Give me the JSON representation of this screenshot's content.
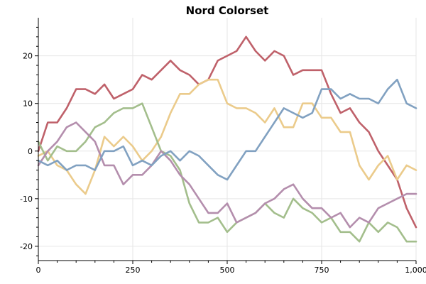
{
  "chart_data": {
    "type": "line",
    "title": "Nord Colorset",
    "xlabel": "",
    "ylabel": "",
    "xlim": [
      0,
      1000
    ],
    "ylim": [
      -23,
      28
    ],
    "x_ticks": [
      0,
      250,
      500,
      750,
      1000
    ],
    "x_tick_labels": [
      "0",
      "250",
      "500",
      "750",
      "1,000"
    ],
    "y_ticks": [
      -20,
      -10,
      0,
      10,
      20
    ],
    "y_tick_labels": [
      "-20",
      "-10",
      "0",
      "10",
      "20"
    ],
    "grid": true,
    "legend": "none",
    "x": [
      0,
      25,
      50,
      75,
      100,
      125,
      150,
      175,
      200,
      225,
      250,
      275,
      300,
      325,
      350,
      375,
      400,
      425,
      450,
      475,
      500,
      525,
      550,
      575,
      600,
      625,
      650,
      675,
      700,
      725,
      750,
      775,
      800,
      825,
      850,
      875,
      900,
      925,
      950,
      975,
      1000
    ],
    "series": [
      {
        "color": "#BF616A",
        "values": [
          0,
          6,
          6,
          9,
          13,
          13,
          12,
          14,
          11,
          12,
          13,
          16,
          15,
          17,
          19,
          17,
          16,
          14,
          15,
          19,
          20,
          21,
          24,
          21,
          19,
          21,
          20,
          16,
          17,
          17,
          17,
          12,
          8,
          9,
          6,
          4,
          0,
          -3,
          -6,
          -12,
          -16
        ]
      },
      {
        "color": "#EBCB8B",
        "values": [
          -1,
          0,
          -3,
          -4,
          -7,
          -9,
          -4,
          3,
          1,
          3,
          1,
          -2,
          0,
          3,
          8,
          12,
          12,
          14,
          15,
          15,
          10,
          9,
          9,
          8,
          6,
          9,
          5,
          5,
          10,
          10,
          7,
          7,
          4,
          4,
          -3,
          -6,
          -3,
          -1,
          -6,
          -3,
          -4
        ]
      },
      {
        "color": "#A3BE8C",
        "values": [
          2,
          -2,
          1,
          0,
          0,
          2,
          5,
          6,
          8,
          9,
          9,
          10,
          5,
          0,
          -1,
          -4,
          -11,
          -15,
          -15,
          -14,
          -17,
          -15,
          -14,
          -13,
          -11,
          -13,
          -14,
          -10,
          -12,
          -13,
          -15,
          -14,
          -17,
          -17,
          -19,
          -15,
          -17,
          -15,
          -16,
          -19,
          -19
        ]
      },
      {
        "color": "#B48EAD",
        "values": [
          -3,
          0,
          2,
          5,
          6,
          4,
          2,
          -3,
          -3,
          -7,
          -5,
          -5,
          -3,
          0,
          -2,
          -5,
          -7,
          -10,
          -13,
          -13,
          -11,
          -15,
          -14,
          -13,
          -11,
          -10,
          -8,
          -7,
          -10,
          -12,
          -12,
          -14,
          -13,
          -16,
          -14,
          -15,
          -12,
          -11,
          -10,
          -9,
          -9
        ]
      },
      {
        "color": "#81A1C1",
        "values": [
          -2,
          -3,
          -2,
          -4,
          -3,
          -3,
          -4,
          0,
          0,
          1,
          -3,
          -2,
          -3,
          -1,
          0,
          -2,
          0,
          -1,
          -3,
          -5,
          -6,
          -3,
          0,
          0,
          3,
          6,
          9,
          8,
          7,
          8,
          13,
          13,
          11,
          12,
          11,
          11,
          10,
          13,
          15,
          10,
          9
        ]
      }
    ]
  }
}
